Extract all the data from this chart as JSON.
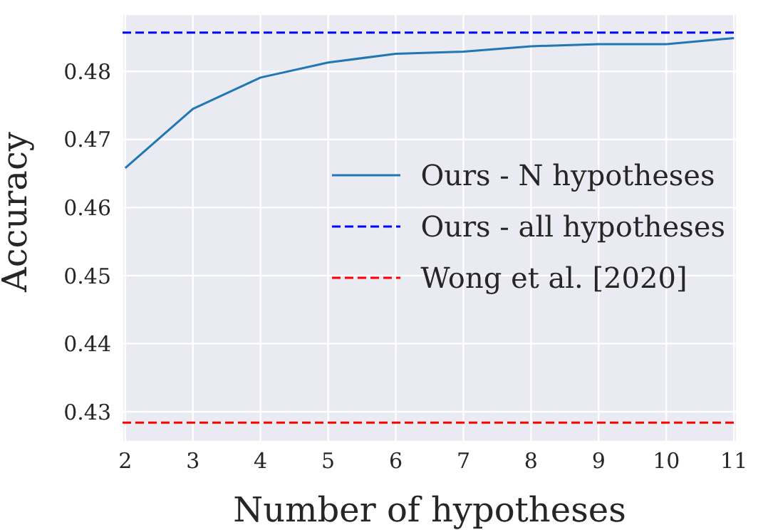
{
  "chart_data": {
    "type": "line",
    "xlabel": "Number of hypotheses",
    "ylabel": "Accuracy",
    "x": [
      2,
      3,
      4,
      5,
      6,
      7,
      8,
      9,
      10,
      11
    ],
    "series": [
      {
        "name": "Ours - N hypotheses",
        "color": "#1f77b4",
        "values": [
          0.4658,
          0.4745,
          0.4791,
          0.4813,
          0.4826,
          0.4829,
          0.4837,
          0.484,
          0.484,
          0.4849
        ]
      }
    ],
    "ref_lines": [
      {
        "axis": "y",
        "value": 0.4857,
        "label": "Ours - all hypotheses",
        "color": "#0000ff",
        "line_style": "dashed"
      },
      {
        "axis": "y",
        "value": 0.4284,
        "label": "Wong et al. [2020]",
        "color": "#ff0000",
        "line_style": "dashed"
      }
    ],
    "xlim": [
      1.96,
      11.04
    ],
    "xticks": [
      2,
      3,
      4,
      5,
      6,
      7,
      8,
      9,
      10,
      11
    ],
    "ylim": [
      0.4256,
      0.4884
    ],
    "yticks": [
      0.43,
      0.44,
      0.45,
      0.46,
      0.47,
      0.48
    ],
    "grid": true,
    "legend": "right",
    "marker": "none",
    "line_style": "solid"
  }
}
